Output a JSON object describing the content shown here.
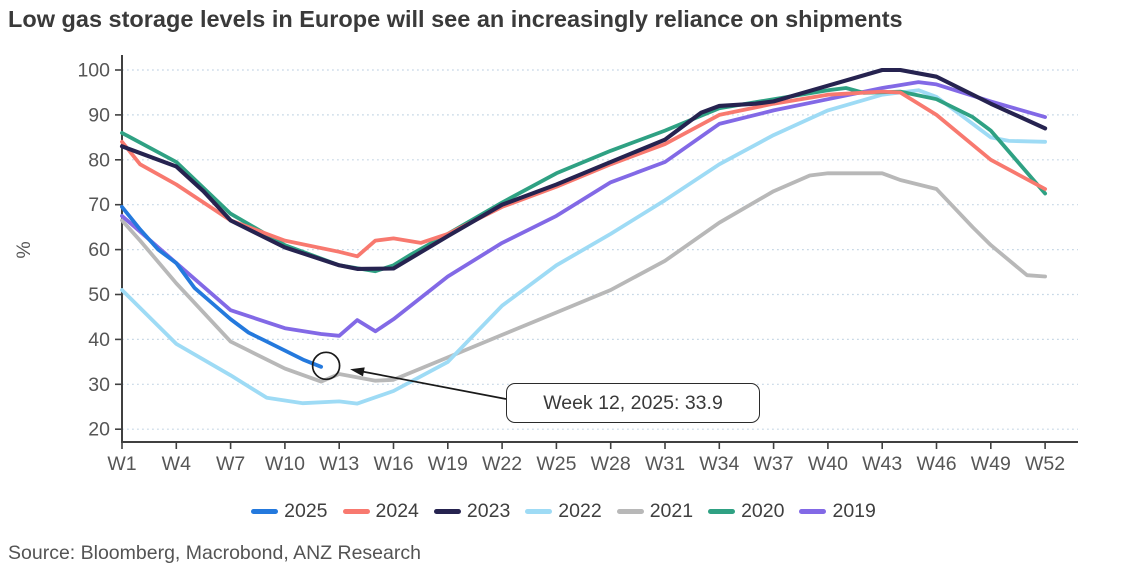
{
  "title": "Low gas storage levels in Europe will see an increasingly reliance on shipments",
  "source": "Source: Bloomberg, Macrobond, ANZ Research",
  "colors": {
    "axis": "#404040",
    "gridline": "#c7d8e6",
    "tick_label": "#565656",
    "annotation": "#1a1a1a"
  },
  "chart_data": {
    "type": "line",
    "title": "Low gas storage levels in Europe will see an increasingly reliance on shipments",
    "xlabel": "",
    "ylabel": "%",
    "ylim": [
      20,
      100
    ],
    "y_ticks": [
      20,
      30,
      40,
      50,
      60,
      70,
      80,
      90,
      100
    ],
    "x_tick_labels": [
      "W1",
      "W4",
      "W7",
      "W10",
      "W13",
      "W16",
      "W19",
      "W22",
      "W25",
      "W28",
      "W31",
      "W34",
      "W37",
      "W40",
      "W43",
      "W46",
      "W49",
      "W52"
    ],
    "x_tick_weeks": [
      1,
      4,
      7,
      10,
      13,
      16,
      19,
      22,
      25,
      28,
      31,
      34,
      37,
      40,
      43,
      46,
      49,
      52
    ],
    "grid": "horizontal dotted",
    "legend_position": "bottom",
    "annotation": {
      "text": "Week 12, 2025: 33.9",
      "week": 12,
      "value": 33.9,
      "series": "2025"
    },
    "series": [
      {
        "name": "2025",
        "color": "#2479dd",
        "points": [
          [
            1,
            69.5
          ],
          [
            2,
            64.5
          ],
          [
            3,
            60
          ],
          [
            4,
            57
          ],
          [
            5,
            51.5
          ],
          [
            6,
            48
          ],
          [
            7,
            44.5
          ],
          [
            8,
            41.5
          ],
          [
            9,
            39.5
          ],
          [
            10,
            37.5
          ],
          [
            11,
            35.5
          ],
          [
            12,
            33.9
          ]
        ]
      },
      {
        "name": "2024",
        "color": "#f8796f",
        "points": [
          [
            1,
            84
          ],
          [
            2,
            79
          ],
          [
            4,
            74.5
          ],
          [
            7,
            66.5
          ],
          [
            10,
            62
          ],
          [
            13,
            59.5
          ],
          [
            14,
            58.5
          ],
          [
            15,
            62
          ],
          [
            16,
            62.5
          ],
          [
            17.5,
            61.5
          ],
          [
            19,
            63.5
          ],
          [
            22,
            69.5
          ],
          [
            25,
            74
          ],
          [
            28,
            79
          ],
          [
            31,
            83.5
          ],
          [
            34,
            90
          ],
          [
            37,
            92.5
          ],
          [
            40,
            94.5
          ],
          [
            43,
            95.2
          ],
          [
            44,
            95
          ],
          [
            46,
            90
          ],
          [
            49,
            80
          ],
          [
            52,
            73.5
          ]
        ]
      },
      {
        "name": "2023",
        "color": "#262350",
        "points": [
          [
            1,
            83
          ],
          [
            2,
            81.5
          ],
          [
            4,
            78.5
          ],
          [
            5.5,
            73
          ],
          [
            7,
            66.5
          ],
          [
            10,
            60.5
          ],
          [
            13,
            56.5
          ],
          [
            14,
            55.7
          ],
          [
            16,
            55.8
          ],
          [
            19,
            63
          ],
          [
            22,
            70
          ],
          [
            25,
            74.5
          ],
          [
            28,
            79.5
          ],
          [
            31,
            84.5
          ],
          [
            33,
            90.5
          ],
          [
            34,
            92
          ],
          [
            36,
            92.5
          ],
          [
            37,
            93
          ],
          [
            40,
            96.5
          ],
          [
            43,
            100
          ],
          [
            44,
            100
          ],
          [
            46,
            98.5
          ],
          [
            49,
            92.5
          ],
          [
            52,
            87
          ]
        ]
      },
      {
        "name": "2022",
        "color": "#9edbf5",
        "points": [
          [
            1,
            51
          ],
          [
            4,
            39
          ],
          [
            7,
            32
          ],
          [
            9,
            27
          ],
          [
            11,
            25.8
          ],
          [
            13,
            26.2
          ],
          [
            14,
            25.7
          ],
          [
            16,
            28.5
          ],
          [
            19,
            35
          ],
          [
            22,
            47.5
          ],
          [
            25,
            56.5
          ],
          [
            28,
            63.5
          ],
          [
            31,
            71
          ],
          [
            34,
            79
          ],
          [
            37,
            85.5
          ],
          [
            40,
            91
          ],
          [
            43,
            94.5
          ],
          [
            45,
            95.5
          ],
          [
            46,
            94
          ],
          [
            48,
            88
          ],
          [
            49,
            85
          ],
          [
            50,
            84.2
          ],
          [
            52,
            84
          ]
        ]
      },
      {
        "name": "2021",
        "color": "#b8b8b8",
        "points": [
          [
            1,
            66.5
          ],
          [
            2,
            62
          ],
          [
            4,
            52.5
          ],
          [
            7,
            39.5
          ],
          [
            8,
            37.5
          ],
          [
            10,
            33.5
          ],
          [
            12,
            30.6
          ],
          [
            13,
            32.3
          ],
          [
            15,
            30.8
          ],
          [
            16,
            31
          ],
          [
            19,
            36
          ],
          [
            22,
            41
          ],
          [
            25,
            46
          ],
          [
            28,
            51
          ],
          [
            31,
            57.5
          ],
          [
            34,
            66
          ],
          [
            37,
            73
          ],
          [
            39,
            76.5
          ],
          [
            40,
            77
          ],
          [
            43,
            77
          ],
          [
            44,
            75.5
          ],
          [
            46,
            73.5
          ],
          [
            48,
            65
          ],
          [
            49,
            61
          ],
          [
            51,
            54.3
          ],
          [
            52,
            54
          ]
        ]
      },
      {
        "name": "2020",
        "color": "#2fa183",
        "points": [
          [
            1,
            86
          ],
          [
            4,
            79.5
          ],
          [
            7,
            68
          ],
          [
            10,
            61
          ],
          [
            13,
            56.5
          ],
          [
            15,
            55.2
          ],
          [
            16,
            56.5
          ],
          [
            17,
            59
          ],
          [
            19,
            63.5
          ],
          [
            22,
            70.5
          ],
          [
            25,
            77
          ],
          [
            28,
            82
          ],
          [
            31,
            86.5
          ],
          [
            34,
            91.5
          ],
          [
            37,
            93.5
          ],
          [
            40,
            95.5
          ],
          [
            41,
            96
          ],
          [
            42,
            94.9
          ],
          [
            44,
            95.2
          ],
          [
            46,
            93.5
          ],
          [
            48,
            89.5
          ],
          [
            49,
            86.5
          ],
          [
            52,
            72.5
          ]
        ]
      },
      {
        "name": "2019",
        "color": "#8269e6",
        "points": [
          [
            1,
            67.5
          ],
          [
            4,
            57
          ],
          [
            7,
            46.5
          ],
          [
            10,
            42.5
          ],
          [
            12,
            41.2
          ],
          [
            13,
            40.8
          ],
          [
            14,
            44.3
          ],
          [
            15,
            41.8
          ],
          [
            16,
            44.5
          ],
          [
            19,
            54
          ],
          [
            22,
            61.5
          ],
          [
            25,
            67.5
          ],
          [
            28,
            75
          ],
          [
            31,
            79.5
          ],
          [
            34,
            88
          ],
          [
            37,
            91
          ],
          [
            40,
            93.5
          ],
          [
            43,
            96
          ],
          [
            45,
            97.3
          ],
          [
            46,
            96.8
          ],
          [
            49,
            93
          ],
          [
            52,
            89.5
          ]
        ]
      }
    ]
  }
}
